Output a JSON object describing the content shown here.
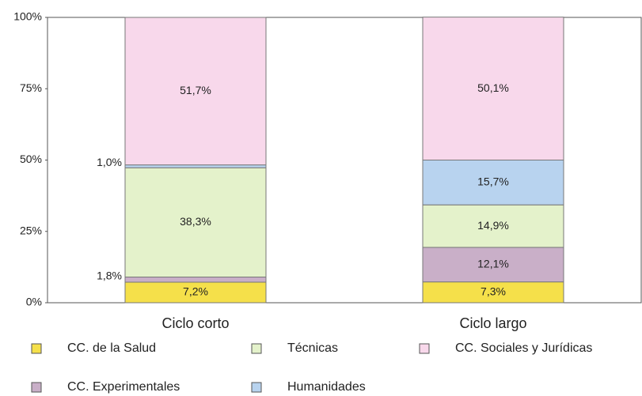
{
  "chart_data": {
    "type": "bar",
    "stacked": true,
    "categories": [
      "Ciclo corto",
      "Ciclo largo"
    ],
    "series": [
      {
        "name": "CC. de la Salud",
        "color": "#f5e04a",
        "values": [
          7.2,
          7.3
        ],
        "value_labels": [
          "7,2%",
          "7,3%"
        ]
      },
      {
        "name": "CC. Experimentales",
        "color": "#c9afc8",
        "values": [
          1.8,
          12.1
        ],
        "value_labels": [
          "1,8%",
          "12,1%"
        ]
      },
      {
        "name": "Técnicas",
        "color": "#e4f2cb",
        "values": [
          38.3,
          14.9
        ],
        "value_labels": [
          "38,3%",
          "14,9%"
        ]
      },
      {
        "name": "Humanidades",
        "color": "#b8d3ef",
        "values": [
          1.0,
          15.7
        ],
        "value_labels": [
          "1,0%",
          "15,7%"
        ]
      },
      {
        "name": "CC. Sociales y Jurídicas",
        "color": "#f8d8eb",
        "values": [
          51.7,
          50.1
        ],
        "value_labels": [
          "51,7%",
          "50,1%"
        ]
      }
    ],
    "ylim": [
      0,
      100
    ],
    "yticks": [
      {
        "value": 0,
        "label": "0%"
      },
      {
        "value": 25,
        "label": "25%"
      },
      {
        "value": 50,
        "label": "50%"
      },
      {
        "value": 75,
        "label": "75%"
      },
      {
        "value": 100,
        "label": "100%"
      }
    ]
  }
}
